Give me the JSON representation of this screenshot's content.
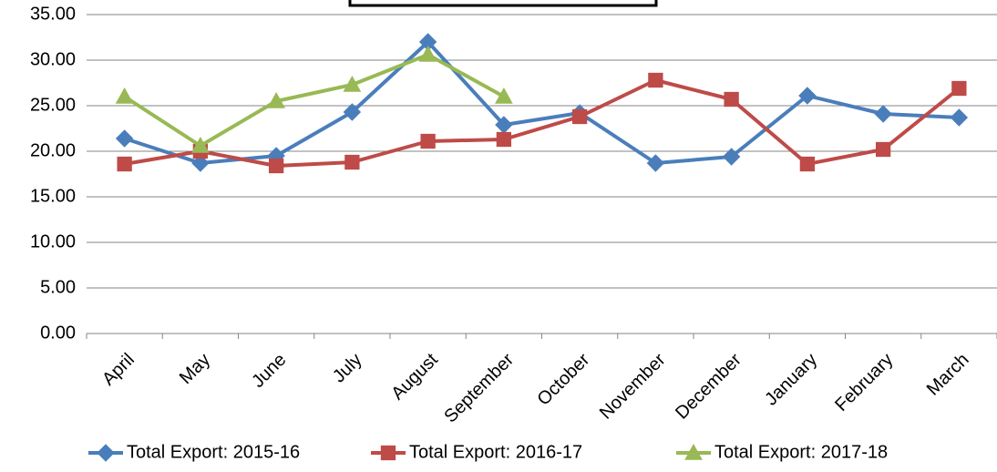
{
  "chart_data": {
    "type": "line",
    "categories": [
      "April",
      "May",
      "June",
      "July",
      "August",
      "September",
      "October",
      "November",
      "December",
      "January",
      "February",
      "March"
    ],
    "series": [
      {
        "name": "Total Export: 2015-16",
        "color": "#4a7ebb",
        "marker": "diamond",
        "values": [
          21.4,
          18.7,
          19.5,
          24.3,
          32.0,
          22.9,
          24.2,
          18.7,
          19.4,
          26.1,
          24.1,
          23.7
        ]
      },
      {
        "name": "Total Export: 2016-17",
        "color": "#be4b48",
        "marker": "square",
        "values": [
          18.6,
          20.0,
          18.4,
          18.8,
          21.1,
          21.3,
          23.8,
          27.8,
          25.7,
          18.6,
          20.2,
          26.9
        ]
      },
      {
        "name": "Total Export: 2017-18",
        "color": "#98b954",
        "marker": "triangle",
        "values": [
          26.0,
          20.6,
          25.5,
          27.3,
          30.6,
          26.0,
          null,
          null,
          null,
          null,
          null,
          null
        ]
      }
    ],
    "ylim": [
      0,
      35
    ],
    "yticks": [
      {
        "value": 0,
        "label": "0.00"
      },
      {
        "value": 5,
        "label": "5.00"
      },
      {
        "value": 10,
        "label": "10.00"
      },
      {
        "value": 15,
        "label": "15.00"
      },
      {
        "value": 20,
        "label": "20.00"
      },
      {
        "value": 25,
        "label": "25.00"
      },
      {
        "value": 30,
        "label": "30.00"
      },
      {
        "value": 35,
        "label": "35.00"
      }
    ],
    "grid": true,
    "legend": "bottom"
  }
}
